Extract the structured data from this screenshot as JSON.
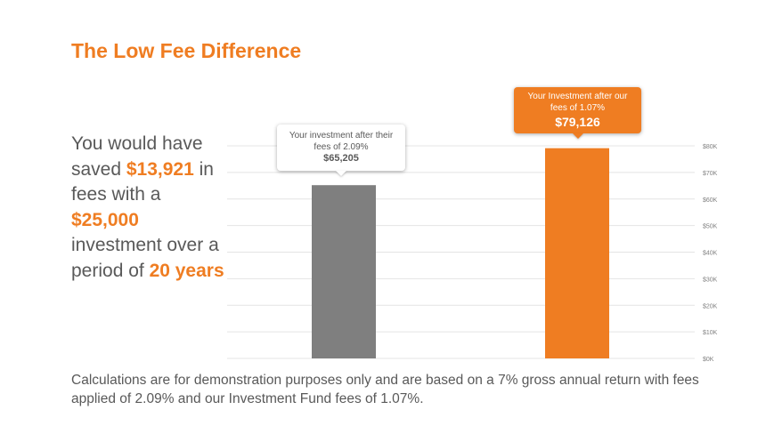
{
  "title": "The Low Fee Difference",
  "summary": {
    "p1": "You would have saved ",
    "savings": "$13,921",
    "p2": " in fees with a ",
    "investment": "$25,000",
    "p3": " investment over a period of ",
    "period": "20 years"
  },
  "disclaimer": "Calculations are for demonstration purposes only and are based on a 7% gross annual return with fees applied of 2.09% and our Investment Fund fees of 1.07%.",
  "colors": {
    "accent": "#ef7d22",
    "bar_gray": "#7f7f7f",
    "text": "#595959"
  },
  "callouts": [
    {
      "text": "Your investment after their fees of 2.09%",
      "value": "$65,205"
    },
    {
      "text": "Your Investment after our fees of 1.07%",
      "value": "$79,126"
    }
  ],
  "chart_data": {
    "type": "bar",
    "categories": [
      "",
      ""
    ],
    "values": [
      65205,
      79126
    ],
    "colors": [
      "#7f7f7f",
      "#ef7d22"
    ],
    "ylim": [
      0,
      80000
    ],
    "yticks": [
      0,
      10000,
      20000,
      30000,
      40000,
      50000,
      60000,
      70000,
      80000
    ],
    "ytick_labels": [
      "$0K",
      "$10K",
      "$20K",
      "$30K",
      "$40K",
      "$50K",
      "$60K",
      "$70K",
      "$80K"
    ],
    "y_axis_position": "right",
    "grid": true,
    "data_labels": [
      "$65,205",
      "$79,126"
    ]
  }
}
